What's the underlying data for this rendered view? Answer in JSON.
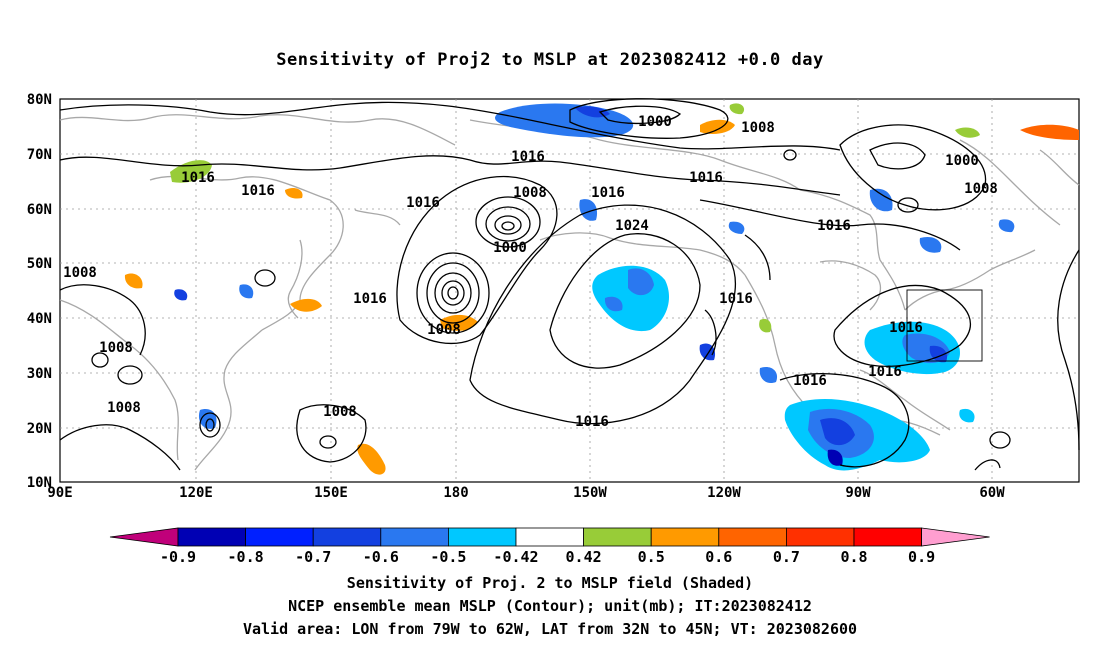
{
  "title": "Sensitivity of Proj2 to MSLP at 2023082412 +0.0 day",
  "map": {
    "lat_labels": [
      "80N",
      "70N",
      "60N",
      "50N",
      "40N",
      "30N",
      "20N",
      "10N"
    ],
    "lon_labels": [
      "90E",
      "120E",
      "150E",
      "180",
      "150W",
      "120W",
      "90W",
      "60W"
    ],
    "contour_labels": [
      "1000",
      "1000",
      "1000",
      "1008",
      "1008",
      "1008",
      "1008",
      "1008",
      "1008",
      "1008",
      "1008",
      "1016",
      "1016",
      "1016",
      "1016",
      "1016",
      "1016",
      "1016",
      "1016",
      "1016",
      "1016",
      "1016",
      "1016",
      "1016",
      "1016",
      "1024"
    ],
    "region_box": {
      "lon_from": "79W",
      "lon_to": "62W",
      "lat_from": "32N",
      "lat_to": "45N"
    }
  },
  "colorbar": {
    "labels": [
      "-0.9",
      "-0.8",
      "-0.7",
      "-0.6",
      "-0.5",
      "-0.42",
      "0.42",
      "0.5",
      "0.6",
      "0.7",
      "0.8",
      "0.9"
    ],
    "colors": [
      "#c0007a",
      "#0000b4",
      "#0020ff",
      "#1340e0",
      "#2a78f0",
      "#00c8ff",
      "#ffffff",
      "#98cc38",
      "#ff9a00",
      "#ff6400",
      "#ff3000",
      "#ff0000",
      "#ff9ed0"
    ]
  },
  "captions": {
    "line1": "Sensitivity of Proj. 2 to MSLP field (Shaded)",
    "line2": "NCEP ensemble mean MSLP (Contour); unit(mb); IT:2023082412",
    "line3": "Valid area: LON from 79W to 62W, LAT from 32N to 45N; VT: 2023082600"
  }
}
